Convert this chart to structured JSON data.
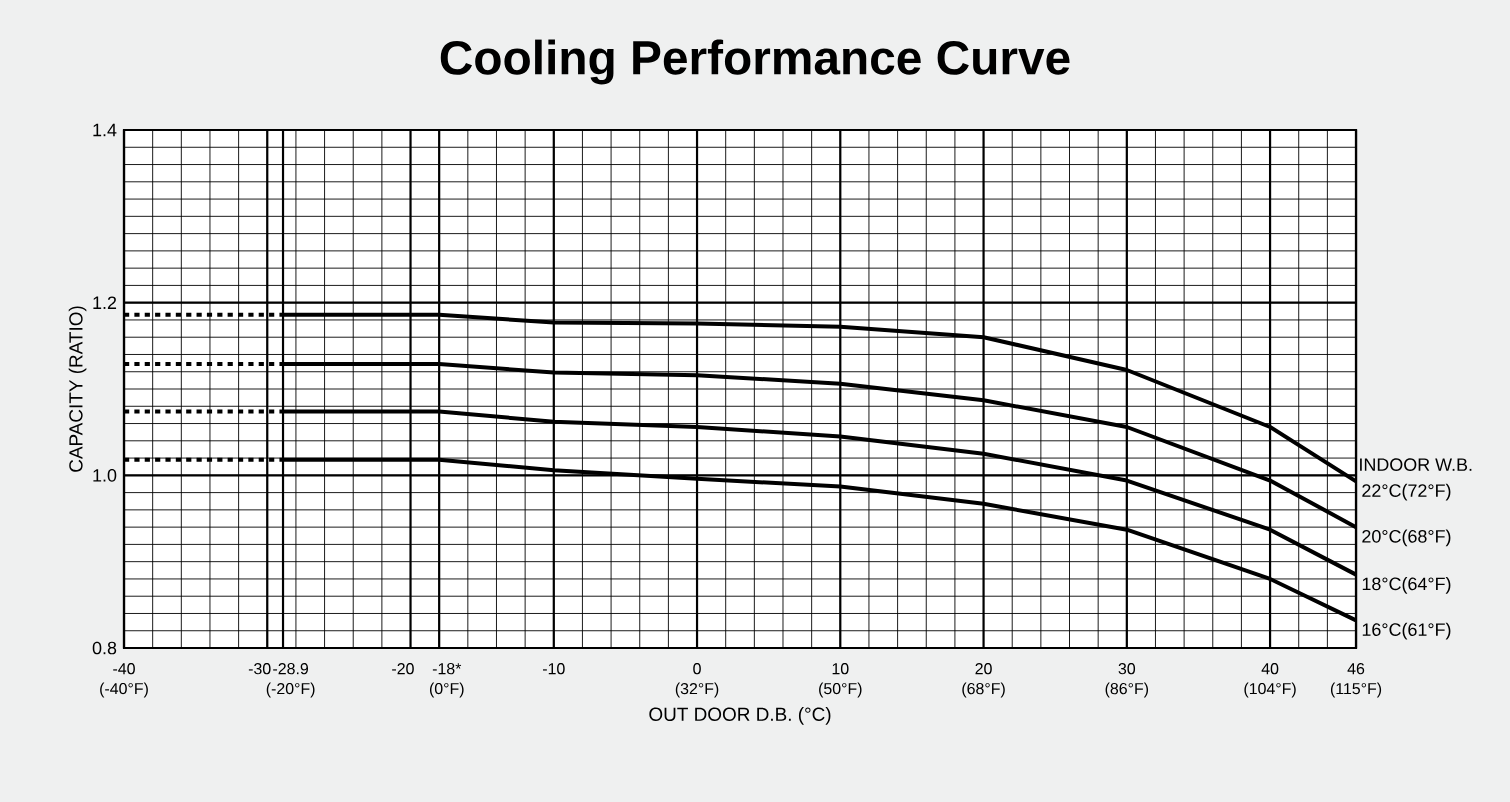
{
  "chart_data": {
    "type": "line",
    "title": "Cooling Performance Curve",
    "xlabel": "OUT DOOR D.B. (°C)",
    "ylabel": "CAPACITY (RATIO)",
    "legend_title": "INDOOR W.B.",
    "xlim": [
      -40,
      46
    ],
    "ylim": [
      0.8,
      1.4
    ],
    "xticks": [
      {
        "value": -40,
        "label": "-40 (-40°F)"
      },
      {
        "value": -30,
        "label": "-30"
      },
      {
        "value": -28.9,
        "label": "-28.9 (-20°F)"
      },
      {
        "value": -20,
        "label": "-20"
      },
      {
        "value": -18,
        "label": "-18* (0°F)"
      },
      {
        "value": -10,
        "label": "-10"
      },
      {
        "value": 0,
        "label": "0 (32°F)"
      },
      {
        "value": 10,
        "label": "10 (50°F)"
      },
      {
        "value": 20,
        "label": "20 (68°F)"
      },
      {
        "value": 30,
        "label": "30 (86°F)"
      },
      {
        "value": 40,
        "label": "40 (104°F)"
      },
      {
        "value": 46,
        "label": "46 (115°F)"
      }
    ],
    "yticks": [
      0.8,
      {
        "value": 1.0,
        "label": "1.0"
      },
      {
        "value": 1.2,
        "label": "1.2"
      },
      1.4
    ],
    "grid": true,
    "marker": "none",
    "line_style": "solid",
    "series": [
      {
        "name": "22°C(72°F)",
        "color": "#000000",
        "x": [
          -28.9,
          -18,
          -10,
          0,
          10,
          20,
          30,
          40,
          46
        ],
        "values": [
          1.186,
          1.186,
          1.177,
          1.176,
          1.172,
          1.16,
          1.122,
          1.056,
          0.993
        ]
      },
      {
        "name": "20°C(68°F)",
        "color": "#000000",
        "x": [
          -28.9,
          -18,
          -10,
          0,
          10,
          20,
          30,
          40,
          46
        ],
        "values": [
          1.129,
          1.129,
          1.119,
          1.116,
          1.106,
          1.087,
          1.056,
          0.994,
          0.94
        ]
      },
      {
        "name": "18°C(64°F)",
        "color": "#000000",
        "x": [
          -28.9,
          -18,
          -10,
          0,
          10,
          20,
          30,
          40,
          46
        ],
        "values": [
          1.074,
          1.074,
          1.062,
          1.056,
          1.045,
          1.025,
          0.994,
          0.937,
          0.885
        ]
      },
      {
        "name": "16°C(61°F)",
        "color": "#000000",
        "x": [
          -28.9,
          -18,
          -10,
          0,
          10,
          20,
          30,
          40,
          46
        ],
        "values": [
          1.018,
          1.018,
          1.006,
          0.996,
          0.987,
          0.967,
          0.937,
          0.88,
          0.832
        ]
      },
      {
        "color": "#000000",
        "line_style": "dotted",
        "x": [
          -40,
          -28.9
        ],
        "values": [
          1.186,
          1.186
        ]
      },
      {
        "color": "#000000",
        "line_style": "dotted",
        "x": [
          -40,
          -28.9
        ],
        "values": [
          1.129,
          1.129
        ]
      },
      {
        "color": "#000000",
        "line_style": "dotted",
        "x": [
          -40,
          -28.9
        ],
        "values": [
          1.074,
          1.074
        ]
      },
      {
        "color": "#000000",
        "line_style": "dotted",
        "x": [
          -40,
          -28.9
        ],
        "values": [
          1.018,
          1.018
        ]
      }
    ]
  }
}
